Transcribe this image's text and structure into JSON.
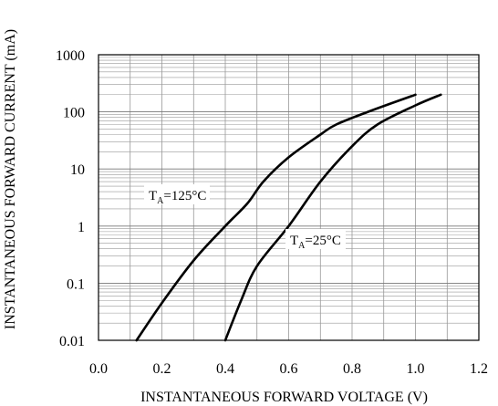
{
  "chart_data": {
    "type": "line",
    "title": "",
    "xlabel": "INSTANTANEOUS FORWARD VOLTAGE (V)",
    "ylabel": "INSTANTANEOUS FORWARD CURRENT (mA)",
    "xscale": "linear",
    "yscale": "log",
    "xlim": [
      0.0,
      1.2
    ],
    "ylim": [
      0.01,
      1000
    ],
    "xticks": [
      "0.0",
      "0.2",
      "0.4",
      "0.6",
      "0.8",
      "1.0",
      "1.2"
    ],
    "yticks": [
      "0.01",
      "0.1",
      "1",
      "10",
      "100",
      "1000"
    ],
    "grid": "on (minor log lines)",
    "legend": "none",
    "series": [
      {
        "label_main": "T",
        "label_sub": "A",
        "label_rest": "=125°C",
        "color": "#000000",
        "points": [
          [
            0.12,
            0.01
          ],
          [
            0.2,
            0.045
          ],
          [
            0.3,
            0.25
          ],
          [
            0.4,
            1.0
          ],
          [
            0.47,
            2.5
          ],
          [
            0.52,
            6.0
          ],
          [
            0.6,
            16
          ],
          [
            0.7,
            40
          ],
          [
            0.75,
            60
          ],
          [
            0.85,
            100
          ],
          [
            1.0,
            200
          ]
        ]
      },
      {
        "label_main": "T",
        "label_sub": "A",
        "label_rest": "=25°C",
        "color": "#000000",
        "points": [
          [
            0.4,
            0.01
          ],
          [
            0.45,
            0.05
          ],
          [
            0.5,
            0.2
          ],
          [
            0.6,
            1.0
          ],
          [
            0.7,
            6.0
          ],
          [
            0.8,
            25
          ],
          [
            0.88,
            60
          ],
          [
            1.0,
            130
          ],
          [
            1.08,
            200
          ]
        ]
      }
    ]
  }
}
